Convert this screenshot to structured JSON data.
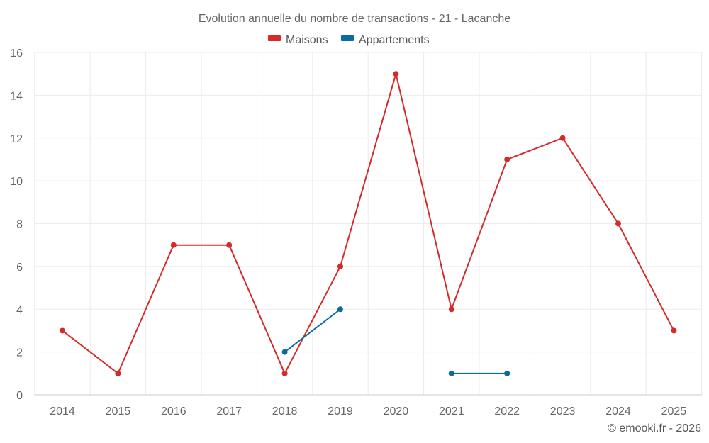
{
  "chart_data": {
    "type": "line",
    "title": "Evolution annuelle du nombre de transactions - 21 - Lacanche",
    "categories": [
      "2014",
      "2015",
      "2016",
      "2017",
      "2018",
      "2019",
      "2020",
      "2021",
      "2022",
      "2023",
      "2024",
      "2025"
    ],
    "series": [
      {
        "name": "Maisons",
        "color": "#d42a2a",
        "values": [
          3,
          1,
          7,
          7,
          1,
          6,
          15,
          4,
          11,
          12,
          8,
          3
        ]
      },
      {
        "name": "Appartements",
        "color": "#0a6aa1",
        "values": [
          null,
          null,
          null,
          null,
          2,
          4,
          null,
          1,
          1,
          null,
          null,
          null
        ]
      }
    ],
    "ylim": [
      0,
      16
    ],
    "yticks": [
      0,
      2,
      4,
      6,
      8,
      10,
      12,
      14,
      16
    ],
    "grid": true,
    "legend_position": "top-center",
    "xlabel": "",
    "ylabel": ""
  },
  "credit": "© emooki.fr - 2026"
}
